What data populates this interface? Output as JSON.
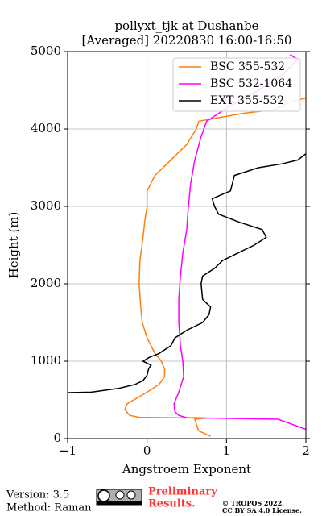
{
  "chart_data": {
    "type": "profile",
    "title": [
      "pollyxt_tjk at Dushanbe",
      "[Averaged] 20220830 16:00-16:50"
    ],
    "xlabel": "Angstroem Exponent",
    "ylabel": "Height (m)",
    "xlim": [
      -1,
      2
    ],
    "ylim": [
      0,
      5000
    ],
    "xticks": [
      {
        "value": -1,
        "label": "−1"
      },
      0,
      1,
      2
    ],
    "yticks": [
      0,
      1000,
      2000,
      3000,
      4000,
      5000
    ],
    "grid": true,
    "legend": "upper right",
    "series": [
      {
        "name": "BSC 355-532",
        "color": "#ff7f0e",
        "heights": [
          30,
          100,
          250,
          265,
          275,
          300,
          375,
          450,
          600,
          700,
          800,
          900,
          1000,
          1100,
          1300,
          1500,
          1700,
          2000,
          2300,
          2600,
          2800,
          3000,
          3200,
          3400,
          3600,
          3800,
          4000,
          4100,
          4200,
          4250,
          4350,
          4400
        ],
        "values": [
          0.8,
          0.65,
          0.6,
          0.74,
          -0.1,
          -0.22,
          -0.28,
          -0.25,
          0.0,
          0.15,
          0.22,
          0.22,
          0.18,
          0.1,
          0.0,
          -0.06,
          -0.08,
          -0.1,
          -0.09,
          -0.05,
          -0.03,
          0.0,
          0.0,
          0.1,
          0.3,
          0.5,
          0.62,
          0.65,
          1.2,
          1.6,
          1.8,
          2.0
        ]
      },
      {
        "name": "BSC 532-1064",
        "color": "#ff00ff",
        "heights": [
          120,
          250,
          270,
          300,
          350,
          450,
          600,
          800,
          1000,
          1200,
          1500,
          1800,
          2100,
          2400,
          2700,
          3000,
          3300,
          3600,
          3900,
          4100,
          4300,
          4500,
          4700,
          4900,
          4960
        ],
        "values": [
          2.0,
          1.65,
          0.5,
          0.4,
          0.35,
          0.34,
          0.4,
          0.46,
          0.45,
          0.42,
          0.4,
          0.4,
          0.42,
          0.45,
          0.5,
          0.52,
          0.55,
          0.6,
          0.68,
          0.75,
          1.05,
          1.4,
          1.7,
          1.9,
          1.8
        ]
      },
      {
        "name": "EXT 355-532",
        "color": "#000000",
        "heights": [
          594,
          600,
          650,
          700,
          750,
          820,
          900,
          950,
          1000,
          1050,
          1100,
          1200,
          1300,
          1400,
          1500,
          1600,
          1700,
          1800,
          2000,
          2100,
          2200,
          2300,
          2400,
          2500,
          2600,
          2700,
          2800,
          2900,
          3000,
          3100,
          3200,
          3400,
          3500,
          3550,
          3600,
          3680
        ],
        "values": [
          -1.0,
          -0.7,
          -0.35,
          -0.15,
          -0.05,
          0.0,
          0.02,
          0.05,
          -0.05,
          0.03,
          0.15,
          0.3,
          0.35,
          0.5,
          0.7,
          0.78,
          0.8,
          0.7,
          0.68,
          0.7,
          0.85,
          0.95,
          1.15,
          1.35,
          1.5,
          1.45,
          1.15,
          0.9,
          0.85,
          0.82,
          1.05,
          1.1,
          1.4,
          1.7,
          1.9,
          2.0
        ]
      }
    ]
  },
  "footer": {
    "version": "Version: 3.5",
    "method": "Method: Raman",
    "notice": [
      "Preliminary",
      "Results."
    ],
    "copyright": [
      "© TROPOS 2022.",
      "CC BY SA 4.0 License."
    ]
  }
}
